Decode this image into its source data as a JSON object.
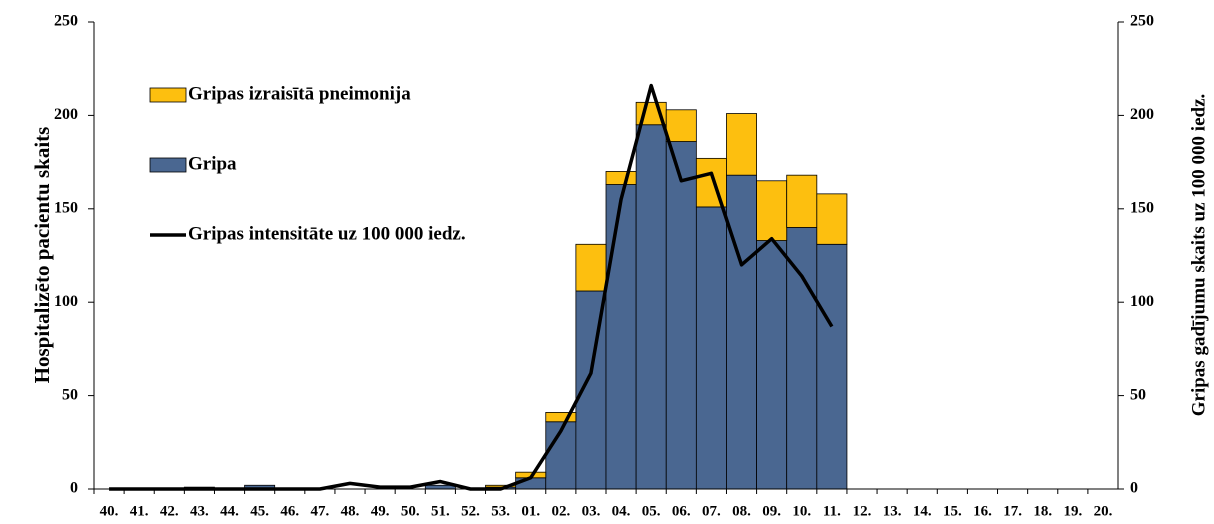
{
  "chart_data": {
    "type": "stacked-bar-line",
    "y_label": "Hospitalizēto pacientu skaits",
    "y2_label": "Gripas gadījumu skaits uz 100 000 iedz.",
    "categories": [
      "40.",
      "41.",
      "42.",
      "43.",
      "44.",
      "45.",
      "46.",
      "47.",
      "48.",
      "49.",
      "50.",
      "51.",
      "52.",
      "53.",
      "01.",
      "02.",
      "03.",
      "04.",
      "05.",
      "06.",
      "07.",
      "08.",
      "09.",
      "10.",
      "11.",
      "12.",
      "13.",
      "14.",
      "15.",
      "16.",
      "17.",
      "18.",
      "19.",
      "20."
    ],
    "series": [
      {
        "name": "Gripa",
        "type": "bar",
        "color": "#4a6791",
        "values": [
          0,
          0,
          0,
          1,
          0,
          2,
          0,
          0,
          0,
          0,
          0,
          2,
          0,
          1,
          6,
          36,
          106,
          163,
          195,
          186,
          151,
          168,
          133,
          140,
          131,
          null,
          null,
          null,
          null,
          null,
          null,
          null,
          null,
          null
        ]
      },
      {
        "name": "Gripas izraisītā pneimonija",
        "type": "bar",
        "color": "#fdbf0f",
        "values": [
          0,
          0,
          0,
          0,
          0,
          0,
          0,
          0,
          0,
          0,
          0,
          0,
          0,
          1,
          3,
          5,
          25,
          7,
          12,
          17,
          26,
          33,
          32,
          28,
          27,
          null,
          null,
          null,
          null,
          null,
          null,
          null,
          null,
          null
        ]
      },
      {
        "name": "Gripas intensitāte uz 100 000 iedz.",
        "type": "line",
        "axis": "y2",
        "color": "#000000",
        "values": [
          0,
          0,
          0,
          0,
          0,
          0,
          0,
          0,
          3,
          1,
          1,
          4,
          0,
          0,
          6,
          31,
          62,
          155,
          216,
          165,
          169,
          120,
          134,
          114,
          87,
          null,
          null,
          null,
          null,
          null,
          null,
          null,
          null,
          null
        ]
      }
    ],
    "legend_order": [
      1,
      0,
      2
    ],
    "ylim": [
      0,
      250
    ],
    "yticks": [
      0,
      50,
      100,
      150,
      200,
      250
    ],
    "y2lim": [
      0,
      250
    ],
    "y2ticks": [
      0,
      50,
      100,
      150,
      200,
      250
    ],
    "legend": "upper left"
  }
}
